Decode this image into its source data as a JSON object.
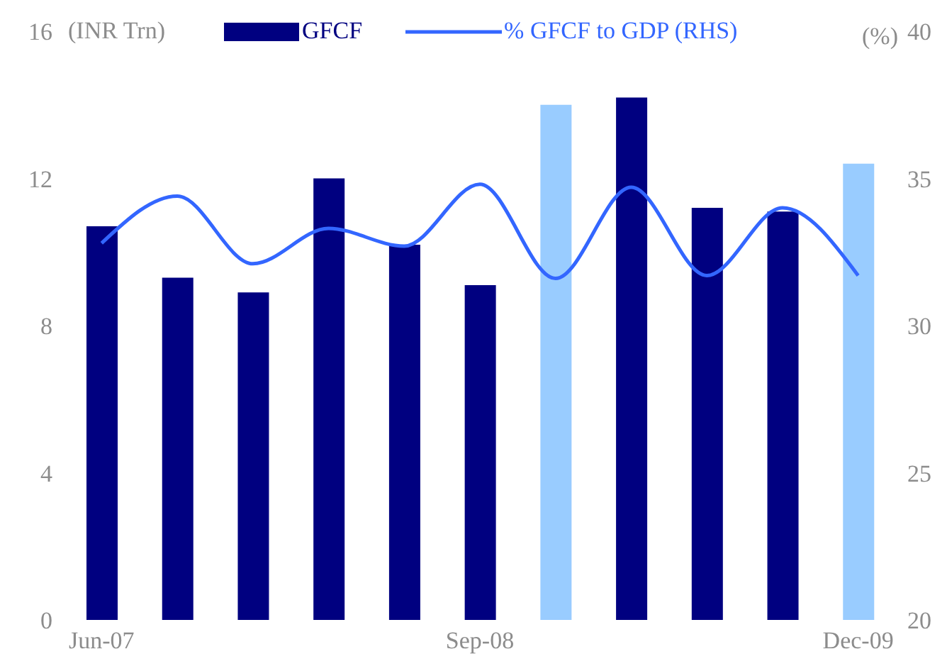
{
  "chart_data": {
    "type": "bar",
    "categories": [
      "Jun-07",
      null,
      null,
      null,
      null,
      "Sep-08",
      null,
      null,
      null,
      null,
      "Dec-09"
    ],
    "series": [
      {
        "name": "GFCF",
        "color": "#000080",
        "colors": [
          "#000080",
          "#000080",
          "#000080",
          "#000080",
          "#000080",
          "#000080",
          "#99ccff",
          "#000080",
          "#000080",
          "#000080",
          "#99ccff"
        ],
        "values": [
          10.7,
          9.3,
          8.9,
          12.0,
          10.2,
          9.1,
          14.0,
          14.2,
          11.2,
          11.1,
          12.4
        ]
      },
      {
        "name": "% GFCF to GDP (RHS)",
        "type": "line",
        "axis": "y2",
        "color": "#3366ff",
        "values": [
          32.8,
          34.4,
          32.1,
          33.3,
          32.7,
          34.8,
          31.6,
          34.7,
          31.7,
          34.0,
          31.7
        ]
      }
    ],
    "ylabel": "(INR Trn)",
    "y2label": "(%)",
    "ylim": [
      0,
      16
    ],
    "yticks": [
      0,
      4,
      8,
      12,
      16
    ],
    "y2lim": [
      20,
      40
    ],
    "y2ticks": [
      20,
      25,
      30,
      35,
      40
    ],
    "legend": "top",
    "marker": "none"
  }
}
